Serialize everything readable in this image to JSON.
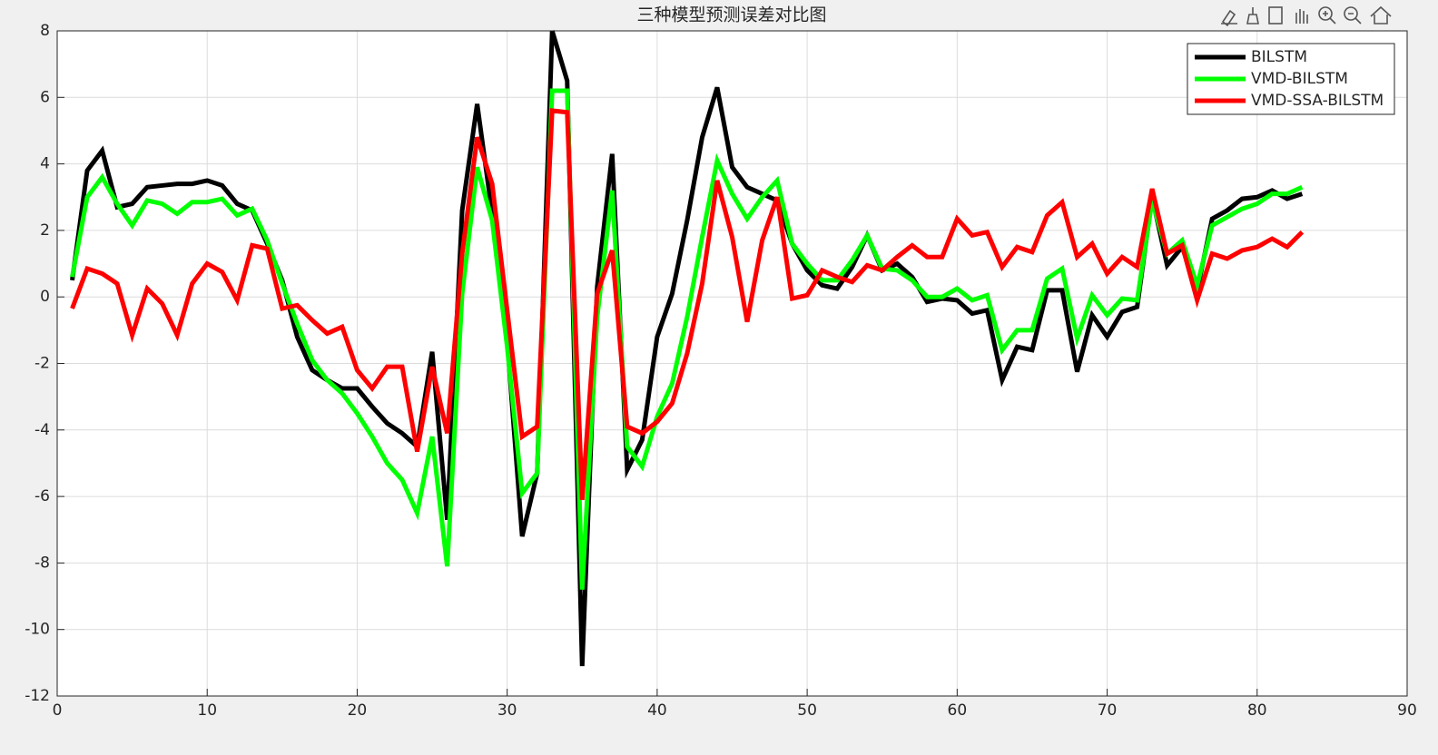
{
  "chart_data": {
    "type": "line",
    "title": "三种模型预测误差对比图",
    "x": [
      1,
      2,
      3,
      4,
      5,
      6,
      7,
      8,
      9,
      10,
      11,
      12,
      13,
      14,
      15,
      16,
      17,
      18,
      19,
      20,
      21,
      22,
      23,
      24,
      25,
      26,
      27,
      28,
      29,
      30,
      31,
      32,
      33,
      34,
      35,
      36,
      37,
      38,
      39,
      40,
      41,
      42,
      43,
      44,
      45,
      46,
      47,
      48,
      49,
      50,
      51,
      52,
      53,
      54,
      55,
      56,
      57,
      58,
      59,
      60,
      61,
      62,
      63,
      64,
      65,
      66,
      67,
      68,
      69,
      70,
      71,
      72,
      73,
      74,
      75,
      76,
      77,
      78,
      79,
      80,
      81,
      82,
      83
    ],
    "series": [
      {
        "name": "BILSTM",
        "color": "#000000",
        "values": [
          0.5,
          3.8,
          4.4,
          2.7,
          2.8,
          3.3,
          3.35,
          3.4,
          3.4,
          3.5,
          3.35,
          2.8,
          2.6,
          1.6,
          0.5,
          -1.2,
          -2.2,
          -2.5,
          -2.75,
          -2.75,
          -3.3,
          -3.8,
          -4.1,
          -4.5,
          -1.65,
          -6.7,
          2.6,
          5.8,
          2.5,
          -1.3,
          -7.2,
          -5.3,
          8.0,
          6.5,
          -11.1,
          0.3,
          4.3,
          -5.2,
          -4.3,
          -1.2,
          0.1,
          2.3,
          4.8,
          6.3,
          3.9,
          3.3,
          3.1,
          2.9,
          1.6,
          0.8,
          0.35,
          0.25,
          0.9,
          1.85,
          0.8,
          1.0,
          0.6,
          -0.15,
          -0.05,
          -0.1,
          -0.5,
          -0.4,
          -2.5,
          -1.5,
          -1.6,
          0.2,
          0.2,
          -2.25,
          -0.55,
          -1.2,
          -0.45,
          -0.3,
          3.0,
          0.95,
          1.5,
          0.2,
          2.35,
          2.6,
          2.95,
          3.0,
          3.2,
          2.95,
          3.1
        ]
      },
      {
        "name": "VMD-BILSTM",
        "color": "#00ff00",
        "values": [
          0.6,
          3.0,
          3.6,
          2.8,
          2.15,
          2.9,
          2.8,
          2.5,
          2.85,
          2.85,
          2.95,
          2.45,
          2.65,
          1.7,
          0.4,
          -0.8,
          -1.9,
          -2.5,
          -2.9,
          -3.5,
          -4.2,
          -5.0,
          -5.5,
          -6.5,
          -4.2,
          -8.1,
          0.1,
          3.9,
          2.3,
          -1.5,
          -5.9,
          -5.3,
          6.2,
          6.2,
          -8.8,
          -0.6,
          3.2,
          -4.5,
          -5.1,
          -3.6,
          -2.6,
          -0.6,
          1.8,
          4.1,
          3.1,
          2.35,
          3.0,
          3.5,
          1.6,
          1.0,
          0.5,
          0.5,
          1.1,
          1.85,
          0.85,
          0.8,
          0.5,
          0.0,
          0.0,
          0.25,
          -0.1,
          0.05,
          -1.6,
          -1.0,
          -1.0,
          0.55,
          0.85,
          -1.25,
          0.05,
          -0.55,
          -0.05,
          -0.1,
          2.9,
          1.3,
          1.7,
          0.35,
          2.15,
          2.4,
          2.65,
          2.8,
          3.1,
          3.1,
          3.3
        ]
      },
      {
        "name": "VMD-SSA-BILSTM",
        "color": "#ff0000",
        "values": [
          -0.35,
          0.85,
          0.7,
          0.4,
          -1.15,
          0.25,
          -0.2,
          -1.15,
          0.4,
          1.0,
          0.75,
          -0.1,
          1.55,
          1.45,
          -0.35,
          -0.25,
          -0.7,
          -1.1,
          -0.9,
          -2.2,
          -2.75,
          -2.1,
          -2.1,
          -4.65,
          -2.1,
          -4.1,
          1.3,
          4.8,
          3.4,
          -0.4,
          -4.2,
          -3.9,
          5.6,
          5.55,
          -6.1,
          0.1,
          1.4,
          -3.9,
          -4.1,
          -3.75,
          -3.2,
          -1.7,
          0.4,
          3.5,
          1.8,
          -0.75,
          1.7,
          3.0,
          -0.05,
          0.05,
          0.8,
          0.6,
          0.45,
          0.95,
          0.8,
          1.2,
          1.55,
          1.2,
          1.2,
          2.35,
          1.85,
          1.95,
          0.9,
          1.5,
          1.35,
          2.45,
          2.85,
          1.2,
          1.6,
          0.7,
          1.2,
          0.9,
          3.25,
          1.3,
          1.55,
          -0.1,
          1.3,
          1.15,
          1.4,
          1.5,
          1.75,
          1.5,
          1.95
        ]
      }
    ],
    "xlim": [
      0,
      90
    ],
    "xticks": [
      0,
      10,
      20,
      30,
      40,
      50,
      60,
      70,
      80,
      90
    ],
    "ylim": [
      -12,
      8
    ],
    "yticks": [
      -12,
      -10,
      -8,
      -6,
      -4,
      -2,
      0,
      2,
      4,
      6,
      8
    ],
    "grid": true,
    "legend": "northeast"
  }
}
